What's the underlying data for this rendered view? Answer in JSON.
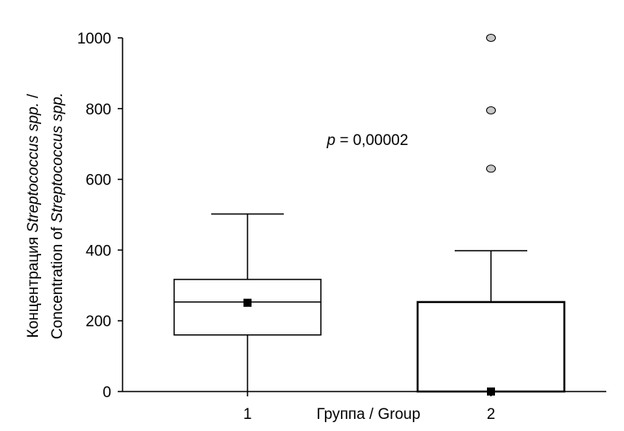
{
  "chart_data": {
    "type": "box",
    "title": "",
    "categories": [
      "1",
      "2"
    ],
    "xlabel": "Группа / Group",
    "ylabel": {
      "line1": {
        "prefix": "Концентрация ",
        "italic": "Streptococcus spp.",
        "suffix": " /"
      },
      "line2": {
        "prefix": "Concentration of ",
        "italic": "Streptococcus spp.",
        "suffix": ""
      }
    },
    "ylim": [
      0,
      1000
    ],
    "yticks": [
      "0",
      "200",
      "400",
      "600",
      "800",
      "1000"
    ],
    "grid": false,
    "annotation": {
      "italic": "p",
      "text": " = 0,00002"
    },
    "series": [
      {
        "category": "1",
        "whisker_low": 0,
        "q1": 160,
        "median": 253,
        "q3": 317,
        "whisker_high": 502,
        "mean": 251,
        "outliers": []
      },
      {
        "category": "2",
        "whisker_low": 0,
        "q1": 0,
        "median": 0,
        "q3": 253,
        "whisker_high": 398,
        "mean": 0,
        "outliers": [
          630,
          795,
          1000
        ]
      }
    ],
    "colors": {
      "box": "#ffffff",
      "stroke": "#000000",
      "mean": "#000000",
      "outlier": "#c8c8c8"
    }
  }
}
